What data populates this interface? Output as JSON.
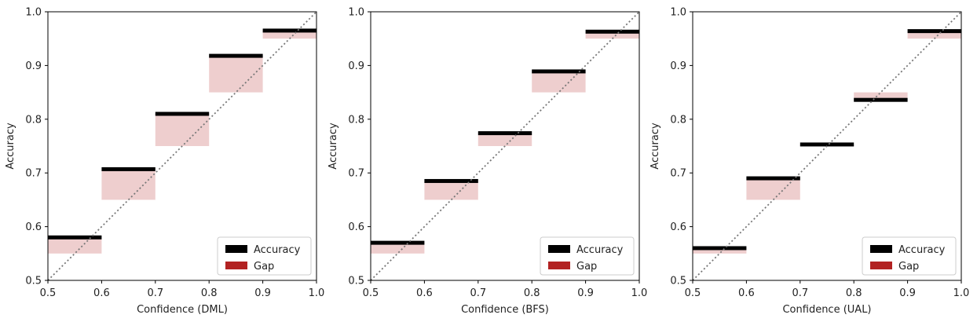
{
  "chart_data": [
    {
      "type": "bar",
      "name": "dml",
      "title": "",
      "xlabel": "Confidence (DML)",
      "ylabel": "Accuracy",
      "xlim": [
        0.5,
        1.0
      ],
      "ylim": [
        0.5,
        1.0
      ],
      "xticks": [
        "0.5",
        "0.6",
        "0.7",
        "0.8",
        "0.9",
        "1.0"
      ],
      "yticks": [
        "0.5",
        "0.6",
        "0.7",
        "0.8",
        "0.9",
        "1.0"
      ],
      "bins": [
        {
          "from": 0.5,
          "to": 0.6,
          "confidence": 0.55,
          "accuracy": 0.58
        },
        {
          "from": 0.6,
          "to": 0.7,
          "confidence": 0.65,
          "accuracy": 0.707
        },
        {
          "from": 0.7,
          "to": 0.8,
          "confidence": 0.75,
          "accuracy": 0.81
        },
        {
          "from": 0.8,
          "to": 0.9,
          "confidence": 0.85,
          "accuracy": 0.918
        },
        {
          "from": 0.9,
          "to": 1.0,
          "confidence": 0.95,
          "accuracy": 0.965
        }
      ],
      "legend": {
        "position": "lower-right",
        "entries": [
          "Accuracy",
          "Gap"
        ]
      },
      "diagonal": true
    },
    {
      "type": "bar",
      "name": "bfs",
      "title": "",
      "xlabel": "Confidence (BFS)",
      "ylabel": "Accuracy",
      "xlim": [
        0.5,
        1.0
      ],
      "ylim": [
        0.5,
        1.0
      ],
      "xticks": [
        "0.5",
        "0.6",
        "0.7",
        "0.8",
        "0.9",
        "1.0"
      ],
      "yticks": [
        "0.5",
        "0.6",
        "0.7",
        "0.8",
        "0.9",
        "1.0"
      ],
      "bins": [
        {
          "from": 0.5,
          "to": 0.6,
          "confidence": 0.55,
          "accuracy": 0.57
        },
        {
          "from": 0.6,
          "to": 0.7,
          "confidence": 0.65,
          "accuracy": 0.685
        },
        {
          "from": 0.7,
          "to": 0.8,
          "confidence": 0.75,
          "accuracy": 0.774
        },
        {
          "from": 0.8,
          "to": 0.9,
          "confidence": 0.85,
          "accuracy": 0.889
        },
        {
          "from": 0.9,
          "to": 1.0,
          "confidence": 0.95,
          "accuracy": 0.963
        }
      ],
      "legend": {
        "position": "lower-right",
        "entries": [
          "Accuracy",
          "Gap"
        ]
      },
      "diagonal": true
    },
    {
      "type": "bar",
      "name": "ual",
      "title": "",
      "xlabel": "Confidence (UAL)",
      "ylabel": "Accuracy",
      "xlim": [
        0.5,
        1.0
      ],
      "ylim": [
        0.5,
        1.0
      ],
      "xticks": [
        "0.5",
        "0.6",
        "0.7",
        "0.8",
        "0.9",
        "1.0"
      ],
      "yticks": [
        "0.5",
        "0.6",
        "0.7",
        "0.8",
        "0.9",
        "1.0"
      ],
      "bins": [
        {
          "from": 0.5,
          "to": 0.6,
          "confidence": 0.55,
          "accuracy": 0.56
        },
        {
          "from": 0.6,
          "to": 0.7,
          "confidence": 0.65,
          "accuracy": 0.69
        },
        {
          "from": 0.7,
          "to": 0.8,
          "confidence": 0.75,
          "accuracy": 0.753
        },
        {
          "from": 0.8,
          "to": 0.9,
          "confidence": 0.85,
          "accuracy": 0.836
        },
        {
          "from": 0.9,
          "to": 1.0,
          "confidence": 0.95,
          "accuracy": 0.964
        }
      ],
      "legend": {
        "position": "lower-right",
        "entries": [
          "Accuracy",
          "Gap"
        ]
      },
      "diagonal": true
    }
  ],
  "colors": {
    "accuracy": "#000000",
    "gap": "#b22222",
    "diagonal": "#777777",
    "axis": "#000000"
  }
}
